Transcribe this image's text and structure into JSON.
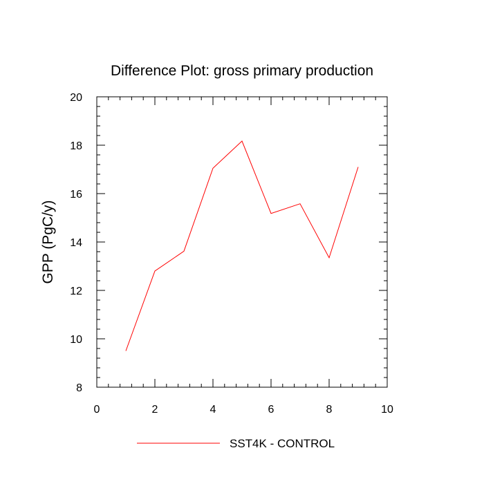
{
  "chart_data": {
    "type": "line",
    "title": "Difference Plot: gross primary production",
    "xlabel": "",
    "ylabel": "GPP  (PgC/y)",
    "xlim": [
      0,
      10
    ],
    "ylim": [
      8,
      20
    ],
    "x_ticks": [
      0,
      2,
      4,
      6,
      8,
      10
    ],
    "y_ticks": [
      8,
      10,
      12,
      14,
      16,
      18,
      20
    ],
    "grid": false,
    "legend_position": "bottom",
    "series": [
      {
        "name": "SST4K - CONTROL",
        "color": "#ff0000",
        "x": [
          1,
          2,
          3,
          4,
          5,
          6,
          7,
          8,
          9
        ],
        "y": [
          9.5,
          12.8,
          13.62,
          17.05,
          18.17,
          15.18,
          15.58,
          13.35,
          17.1
        ]
      }
    ]
  }
}
